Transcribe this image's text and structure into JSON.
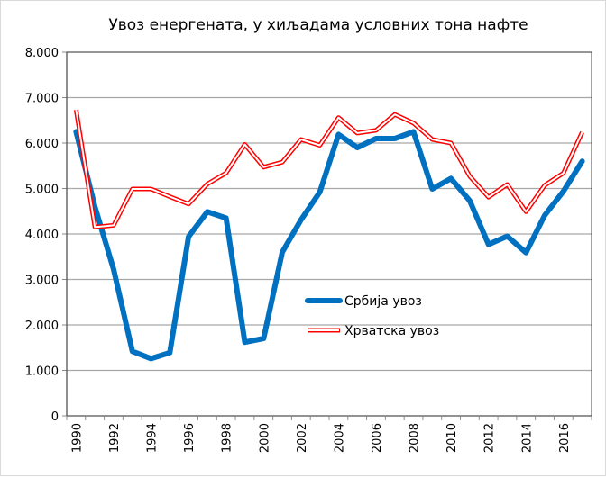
{
  "chart_data": {
    "type": "line",
    "title": "Увоз енергената, у хиљадама условних тона нафте",
    "xlabel": "",
    "ylabel": "",
    "ylim": [
      0,
      8000
    ],
    "yticks": [
      0,
      1000,
      2000,
      3000,
      4000,
      5000,
      6000,
      7000,
      8000
    ],
    "ytick_labels": [
      "0",
      "1.000",
      "2.000",
      "3.000",
      "4.000",
      "5.000",
      "6.000",
      "7.000",
      "8.000"
    ],
    "x": [
      1990,
      1991,
      1992,
      1993,
      1994,
      1995,
      1996,
      1997,
      1998,
      1999,
      2000,
      2001,
      2002,
      2003,
      2004,
      2005,
      2006,
      2007,
      2008,
      2009,
      2010,
      2011,
      2012,
      2013,
      2014,
      2015,
      2016,
      2017
    ],
    "xtick_labels": [
      "1990",
      "1992",
      "1994",
      "1996",
      "1998",
      "2000",
      "2002",
      "2004",
      "2006",
      "2008",
      "2010",
      "2012",
      "2014",
      "2016"
    ],
    "grid": true,
    "legend_position": "center-right",
    "series": [
      {
        "name": "Србија увоз",
        "color": "#0070c0",
        "values": [
          6250,
          4600,
          3220,
          1420,
          1260,
          1390,
          3940,
          4490,
          4350,
          1620,
          1700,
          3600,
          4310,
          4920,
          6190,
          5900,
          6100,
          6100,
          6250,
          4990,
          5220,
          4730,
          3770,
          3950,
          3590,
          4410,
          4940,
          5600
        ]
      },
      {
        "name": "Хрватска увоз",
        "color": "#ff0000",
        "values": [
          6730,
          4150,
          4190,
          4990,
          4990,
          4820,
          4660,
          5100,
          5340,
          5970,
          5470,
          5580,
          6080,
          5950,
          6560,
          6220,
          6280,
          6630,
          6440,
          6080,
          6000,
          5270,
          4810,
          5090,
          4490,
          5070,
          5340,
          6240
        ]
      }
    ]
  }
}
